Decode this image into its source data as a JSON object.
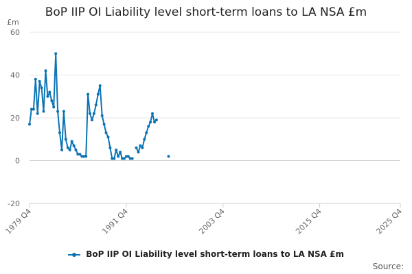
{
  "chart_data": {
    "type": "line",
    "title": "BoP IIP OI Liability level short-term loans to LA NSA £m",
    "y_unit": "£m",
    "ylim": [
      -20,
      60
    ],
    "y_ticks": [
      "60",
      "40",
      "20",
      "0",
      "-20"
    ],
    "x_tick_labels": [
      "1979 Q4",
      "1991 Q4",
      "2003 Q4",
      "2015 Q4",
      "2025 Q4"
    ],
    "xlim_quarter_index": [
      0,
      184
    ],
    "grid": true,
    "legend": "bottom",
    "series": [
      {
        "name": "BoP IIP OI Liability level short-term loans to LA NSA £m",
        "color": "#0b73b4",
        "segments": [
          [
            [
              "1979 Q4",
              17
            ],
            [
              "1980 Q1",
              24
            ],
            [
              "1980 Q2",
              24
            ],
            [
              "1980 Q3",
              38
            ],
            [
              "1980 Q4",
              22
            ],
            [
              "1981 Q1",
              37
            ],
            [
              "1981 Q2",
              34
            ],
            [
              "1981 Q3",
              23
            ],
            [
              "1981 Q4",
              42
            ],
            [
              "1982 Q1",
              30
            ],
            [
              "1982 Q2",
              32
            ],
            [
              "1982 Q3",
              28
            ],
            [
              "1982 Q4",
              25
            ],
            [
              "1983 Q1",
              50
            ],
            [
              "1983 Q2",
              23
            ],
            [
              "1983 Q3",
              13
            ],
            [
              "1983 Q4",
              5
            ],
            [
              "1984 Q1",
              23
            ],
            [
              "1984 Q2",
              10
            ],
            [
              "1984 Q3",
              6
            ],
            [
              "1984 Q4",
              5
            ],
            [
              "1985 Q1",
              9
            ],
            [
              "1985 Q2",
              7
            ],
            [
              "1985 Q3",
              5
            ],
            [
              "1985 Q4",
              3
            ],
            [
              "1986 Q1",
              3
            ],
            [
              "1986 Q2",
              2
            ],
            [
              "1986 Q3",
              2
            ],
            [
              "1986 Q4",
              2
            ],
            [
              "1987 Q1",
              31
            ],
            [
              "1987 Q2",
              22
            ],
            [
              "1987 Q3",
              19
            ],
            [
              "1987 Q4",
              22
            ],
            [
              "1988 Q1",
              26
            ],
            [
              "1988 Q2",
              31
            ],
            [
              "1988 Q3",
              35
            ],
            [
              "1988 Q4",
              21
            ],
            [
              "1989 Q1",
              17
            ],
            [
              "1989 Q2",
              13
            ],
            [
              "1989 Q3",
              11
            ],
            [
              "1989 Q4",
              6
            ],
            [
              "1990 Q1",
              1
            ],
            [
              "1990 Q2",
              1
            ],
            [
              "1990 Q3",
              5
            ],
            [
              "1990 Q4",
              2
            ],
            [
              "1991 Q1",
              4
            ],
            [
              "1991 Q2",
              1
            ],
            [
              "1991 Q3",
              1
            ],
            [
              "1991 Q4",
              2
            ],
            [
              "1992 Q1",
              2
            ],
            [
              "1992 Q2",
              1
            ],
            [
              "1992 Q3",
              1
            ]
          ],
          [
            [
              "1993 Q1",
              6
            ],
            [
              "1993 Q2",
              4
            ],
            [
              "1993 Q3",
              7
            ],
            [
              "1993 Q4",
              6
            ],
            [
              "1994 Q1",
              10
            ],
            [
              "1994 Q2",
              13
            ],
            [
              "1994 Q3",
              16
            ],
            [
              "1994 Q4",
              18
            ],
            [
              "1995 Q1",
              22
            ],
            [
              "1995 Q2",
              18
            ],
            [
              "1995 Q3",
              19
            ]
          ],
          [
            [
              "1997 Q1",
              2
            ]
          ]
        ]
      }
    ]
  },
  "credits": "Source:"
}
